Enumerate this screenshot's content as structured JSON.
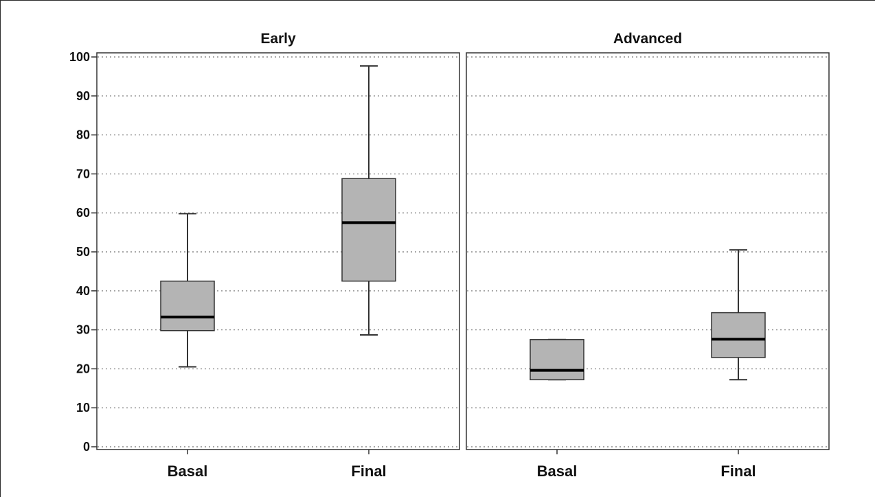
{
  "chart_data": {
    "type": "boxplot",
    "layout": "faceted",
    "yaxis": {
      "ylim": [
        0,
        100
      ],
      "ticks": [
        0,
        10,
        20,
        30,
        40,
        50,
        60,
        70,
        80,
        90,
        100
      ],
      "grid": "dotted horizontal"
    },
    "colors": {
      "box_fill": "#b4b4b4",
      "box_stroke": "#333333",
      "median": "#000000",
      "grid": "#8a8a8a"
    },
    "panels": [
      {
        "title": "Early",
        "categories": [
          "Basal",
          "Final"
        ],
        "boxes": [
          {
            "category": "Basal",
            "whisker_low": 20.5,
            "q1": 29.8,
            "median": 33.3,
            "q3": 42.5,
            "whisker_high": 59.8
          },
          {
            "category": "Final",
            "whisker_low": 28.7,
            "q1": 42.5,
            "median": 57.5,
            "q3": 68.8,
            "whisker_high": 97.7
          }
        ]
      },
      {
        "title": "Advanced",
        "categories": [
          "Basal",
          "Final"
        ],
        "boxes": [
          {
            "category": "Basal",
            "whisker_low": 17.2,
            "q1": 17.2,
            "median": 19.6,
            "q3": 27.5,
            "whisker_high": 27.5
          },
          {
            "category": "Final",
            "whisker_low": 17.2,
            "q1": 22.9,
            "median": 27.6,
            "q3": 34.4,
            "whisker_high": 50.5
          }
        ]
      }
    ]
  }
}
